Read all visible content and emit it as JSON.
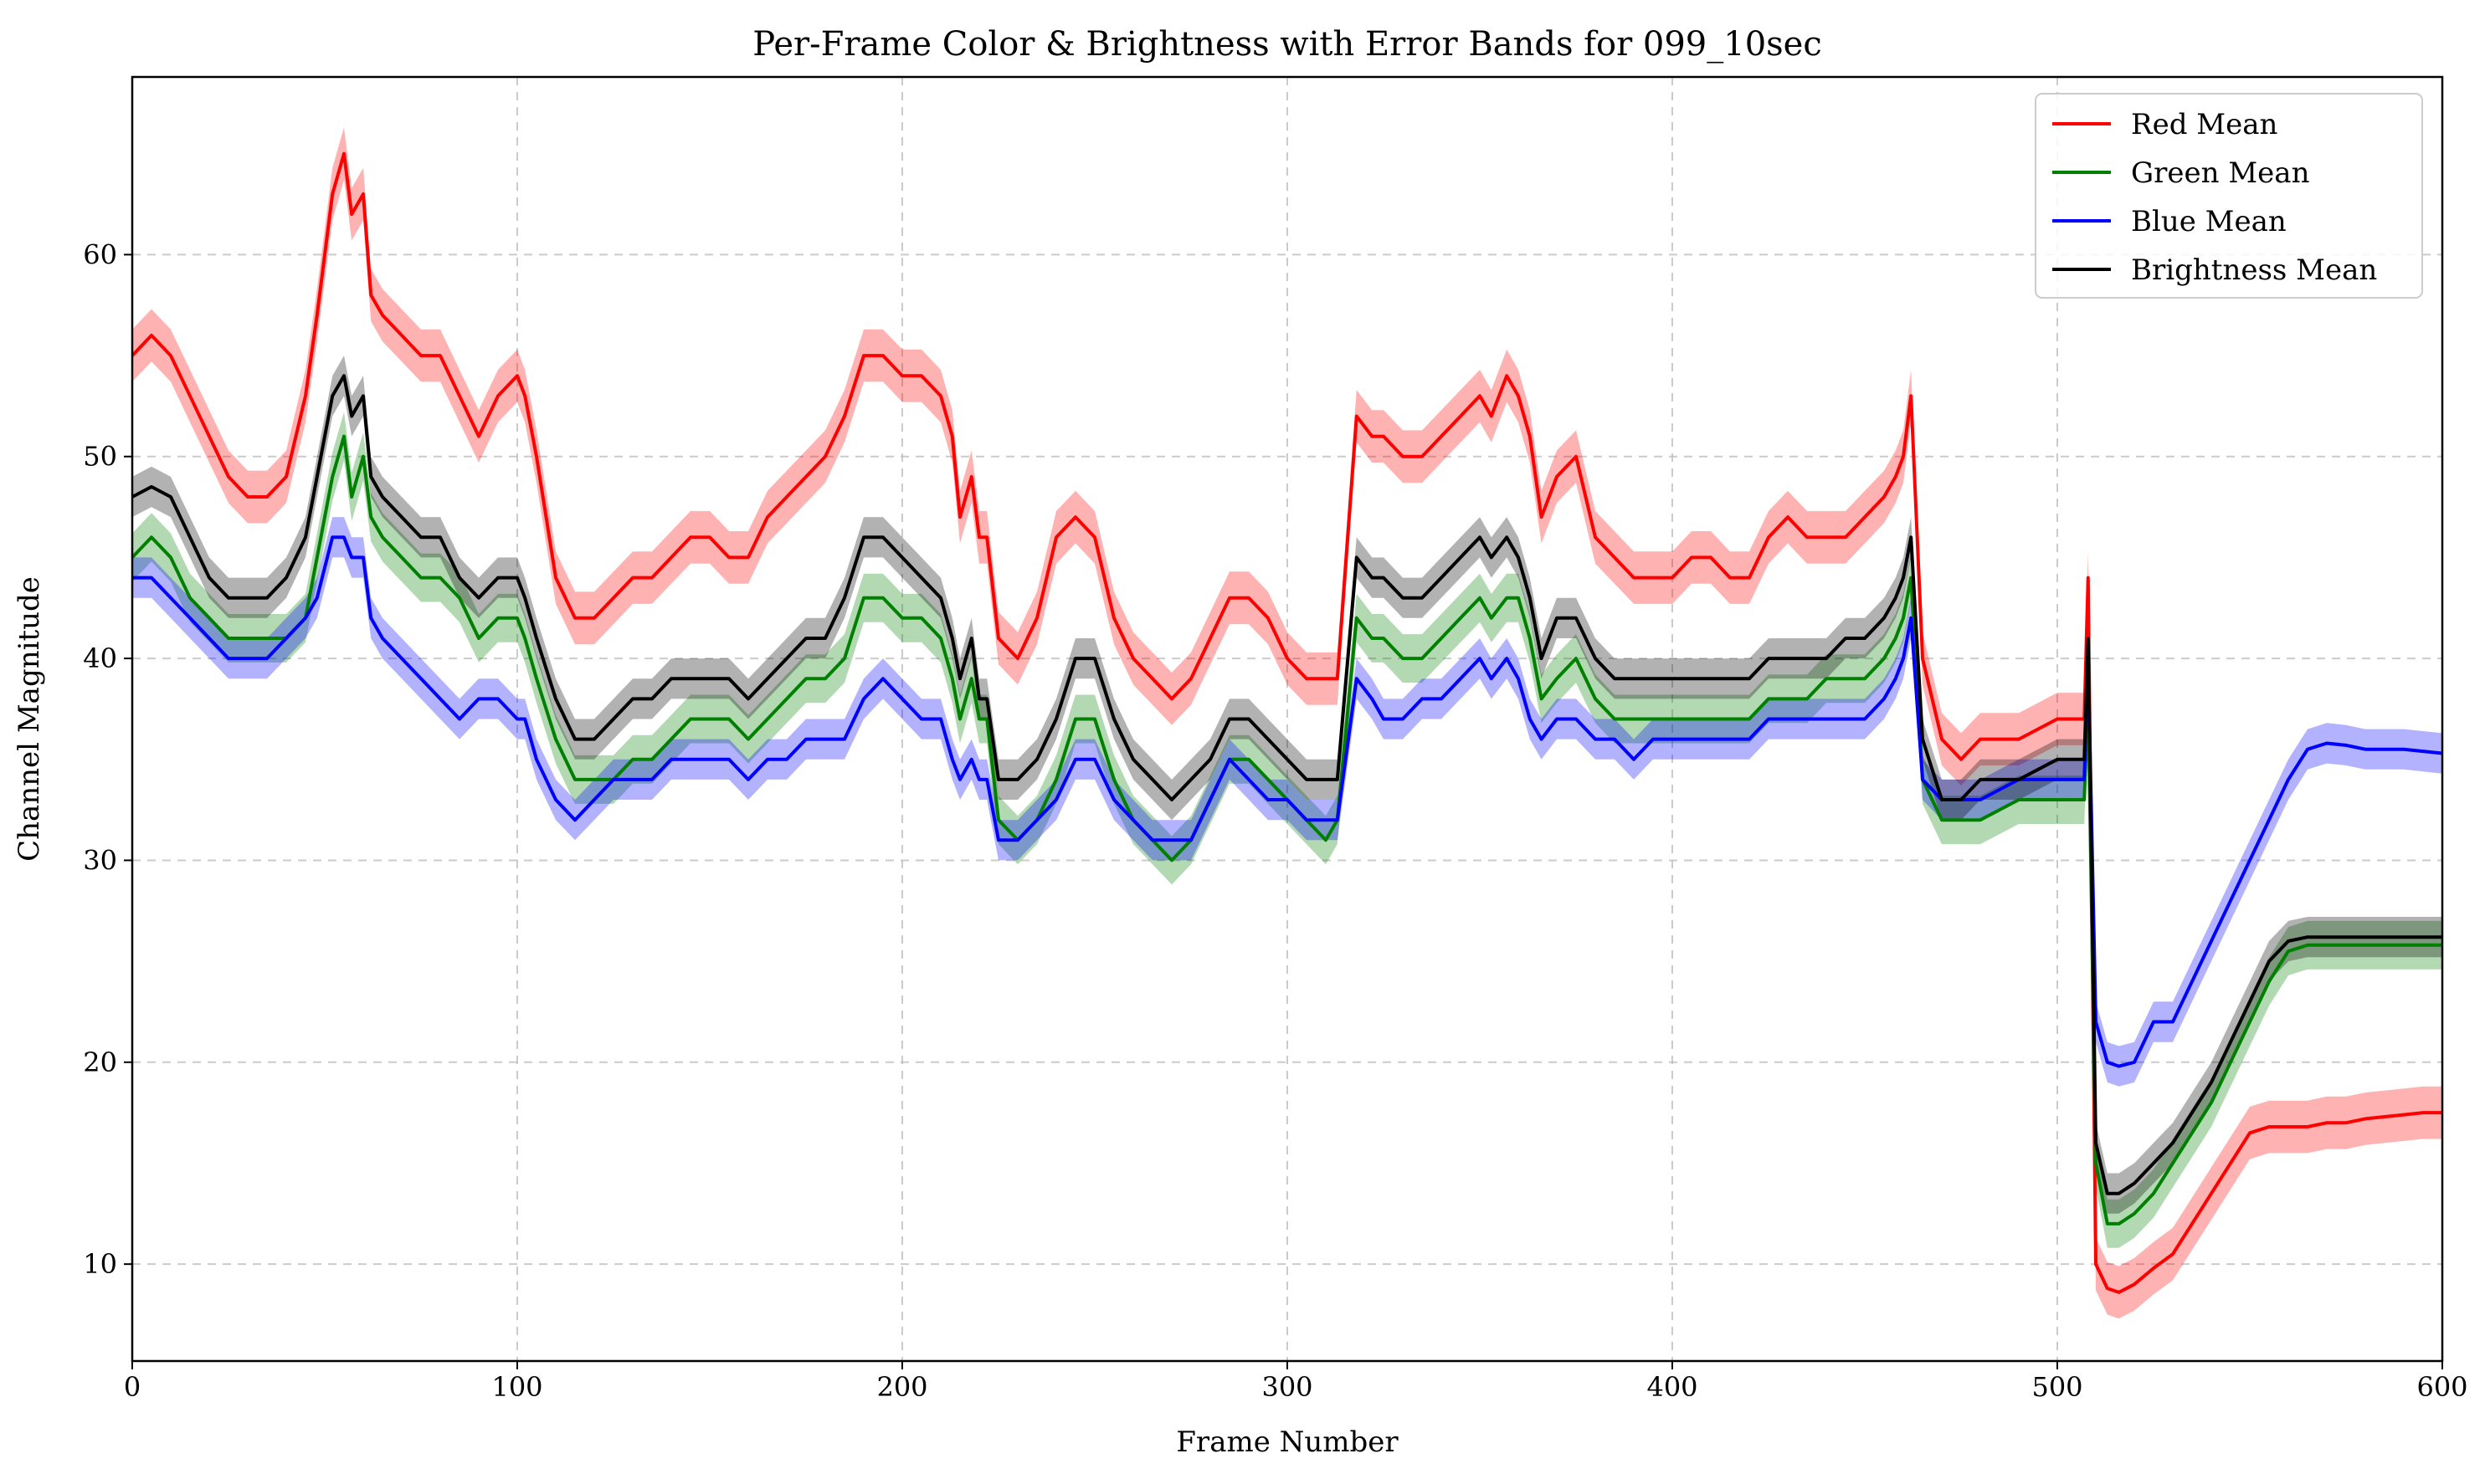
{
  "chart_data": {
    "type": "line",
    "title": "Per-Frame Color & Brightness with Error Bands for 099_10sec",
    "xlabel": "Frame Number",
    "ylabel": "Channel Magnitude",
    "xlim": [
      0,
      600
    ],
    "ylim": [
      5.2,
      68.8
    ],
    "xticks": [
      0,
      100,
      200,
      300,
      400,
      500,
      600
    ],
    "yticks": [
      10,
      20,
      30,
      40,
      50,
      60
    ],
    "grid": true,
    "legend_position": "top-right",
    "band_halfwidth": [
      1.3,
      1.2,
      1.0,
      1.0
    ],
    "series": [
      {
        "name": "Red Mean",
        "color": "#ff0000",
        "x": [
          0,
          5,
          10,
          15,
          20,
          25,
          30,
          35,
          40,
          45,
          48,
          52,
          55,
          57,
          60,
          62,
          65,
          70,
          75,
          80,
          85,
          90,
          95,
          100,
          102,
          105,
          110,
          115,
          120,
          125,
          130,
          135,
          140,
          145,
          150,
          155,
          160,
          165,
          170,
          175,
          180,
          185,
          190,
          195,
          200,
          205,
          210,
          213,
          215,
          218,
          220,
          222,
          225,
          230,
          235,
          240,
          245,
          250,
          255,
          260,
          265,
          270,
          275,
          280,
          285,
          290,
          295,
          300,
          305,
          310,
          313,
          318,
          322,
          325,
          330,
          335,
          340,
          345,
          350,
          353,
          357,
          360,
          363,
          366,
          370,
          375,
          380,
          385,
          390,
          395,
          400,
          405,
          410,
          415,
          420,
          425,
          430,
          435,
          440,
          445,
          450,
          455,
          458,
          460,
          462,
          465,
          470,
          475,
          480,
          490,
          500,
          505,
          507,
          508,
          510,
          513,
          516,
          520,
          525,
          530,
          535,
          540,
          545,
          550,
          555,
          560,
          565,
          570,
          575,
          580,
          585,
          590,
          595,
          600
        ],
        "y": [
          55,
          56,
          55,
          53,
          51,
          49,
          48,
          48,
          49,
          53,
          57,
          63,
          65,
          62,
          63,
          58,
          57,
          56,
          55,
          55,
          53,
          51,
          53,
          54,
          53,
          50,
          44,
          42,
          42,
          43,
          44,
          44,
          45,
          46,
          46,
          45,
          45,
          47,
          48,
          49,
          50,
          52,
          55,
          55,
          54,
          54,
          53,
          51,
          47,
          49,
          46,
          46,
          41,
          40,
          42,
          46,
          47,
          46,
          42,
          40,
          39,
          38,
          39,
          41,
          43,
          43,
          42,
          40,
          39,
          39,
          39,
          52,
          51,
          51,
          50,
          50,
          51,
          52,
          53,
          52,
          54,
          53,
          51,
          47,
          49,
          50,
          46,
          45,
          44,
          44,
          44,
          45,
          45,
          44,
          44,
          46,
          47,
          46,
          46,
          46,
          47,
          48,
          49,
          50,
          53,
          40,
          36,
          35,
          36,
          36,
          37,
          37,
          37,
          44,
          10,
          8.8,
          8.6,
          9,
          9.8,
          10.5,
          12,
          13.5,
          15,
          16.5,
          16.8,
          16.8,
          16.8,
          17,
          17,
          17.2,
          17.3,
          17.4,
          17.5,
          17.5
        ]
      },
      {
        "name": "Green Mean",
        "color": "#008000",
        "x": [
          0,
          5,
          10,
          15,
          20,
          25,
          30,
          35,
          40,
          45,
          48,
          52,
          55,
          57,
          60,
          62,
          65,
          70,
          75,
          80,
          85,
          90,
          95,
          100,
          102,
          105,
          110,
          115,
          120,
          125,
          130,
          135,
          140,
          145,
          150,
          155,
          160,
          165,
          170,
          175,
          180,
          185,
          190,
          195,
          200,
          205,
          210,
          213,
          215,
          218,
          220,
          222,
          225,
          230,
          235,
          240,
          245,
          250,
          255,
          260,
          265,
          270,
          275,
          280,
          285,
          290,
          295,
          300,
          305,
          310,
          313,
          318,
          322,
          325,
          330,
          335,
          340,
          345,
          350,
          353,
          357,
          360,
          363,
          366,
          370,
          375,
          380,
          385,
          390,
          395,
          400,
          405,
          410,
          415,
          420,
          425,
          430,
          435,
          440,
          445,
          450,
          455,
          458,
          460,
          462,
          465,
          470,
          475,
          480,
          490,
          500,
          505,
          507,
          508,
          510,
          513,
          516,
          520,
          525,
          530,
          535,
          540,
          545,
          550,
          555,
          560,
          565,
          570,
          575,
          580,
          585,
          590,
          595,
          600
        ],
        "y": [
          45,
          46,
          45,
          43,
          42,
          41,
          41,
          41,
          41,
          42,
          45,
          49,
          51,
          48,
          50,
          47,
          46,
          45,
          44,
          44,
          43,
          41,
          42,
          42,
          41,
          39,
          36,
          34,
          34,
          34,
          35,
          35,
          36,
          37,
          37,
          37,
          36,
          37,
          38,
          39,
          39,
          40,
          43,
          43,
          42,
          42,
          41,
          39,
          37,
          39,
          37,
          37,
          32,
          31,
          32,
          34,
          37,
          37,
          34,
          32,
          31,
          30,
          31,
          33,
          35,
          35,
          34,
          33,
          32,
          31,
          32,
          42,
          41,
          41,
          40,
          40,
          41,
          42,
          43,
          42,
          43,
          43,
          41,
          38,
          39,
          40,
          38,
          37,
          37,
          37,
          37,
          37,
          37,
          37,
          37,
          38,
          38,
          38,
          39,
          39,
          39,
          40,
          41,
          42,
          44,
          34,
          32,
          32,
          32,
          33,
          33,
          33,
          33,
          38,
          15,
          12,
          12,
          12.5,
          13.5,
          15,
          16.5,
          18,
          20,
          22,
          24,
          25.5,
          25.8,
          25.8,
          25.8,
          25.8,
          25.8,
          25.8,
          25.8,
          25.8
        ]
      },
      {
        "name": "Blue Mean",
        "color": "#0000ff",
        "x": [
          0,
          5,
          10,
          15,
          20,
          25,
          30,
          35,
          40,
          45,
          48,
          52,
          55,
          57,
          60,
          62,
          65,
          70,
          75,
          80,
          85,
          90,
          95,
          100,
          102,
          105,
          110,
          115,
          120,
          125,
          130,
          135,
          140,
          145,
          150,
          155,
          160,
          165,
          170,
          175,
          180,
          185,
          190,
          195,
          200,
          205,
          210,
          213,
          215,
          218,
          220,
          222,
          225,
          230,
          235,
          240,
          245,
          250,
          255,
          260,
          265,
          270,
          275,
          280,
          285,
          290,
          295,
          300,
          305,
          310,
          313,
          318,
          322,
          325,
          330,
          335,
          340,
          345,
          350,
          353,
          357,
          360,
          363,
          366,
          370,
          375,
          380,
          385,
          390,
          395,
          400,
          405,
          410,
          415,
          420,
          425,
          430,
          435,
          440,
          445,
          450,
          455,
          458,
          460,
          462,
          465,
          470,
          475,
          480,
          490,
          500,
          505,
          507,
          508,
          510,
          513,
          516,
          520,
          525,
          530,
          535,
          540,
          545,
          550,
          555,
          560,
          565,
          570,
          575,
          580,
          585,
          590,
          595,
          600
        ],
        "y": [
          44,
          44,
          43,
          42,
          41,
          40,
          40,
          40,
          41,
          42,
          43,
          46,
          46,
          45,
          45,
          42,
          41,
          40,
          39,
          38,
          37,
          38,
          38,
          37,
          37,
          35,
          33,
          32,
          33,
          34,
          34,
          34,
          35,
          35,
          35,
          35,
          34,
          35,
          35,
          36,
          36,
          36,
          38,
          39,
          38,
          37,
          37,
          35,
          34,
          35,
          34,
          34,
          31,
          31,
          32,
          33,
          35,
          35,
          33,
          32,
          31,
          31,
          31,
          33,
          35,
          34,
          33,
          33,
          32,
          32,
          32,
          39,
          38,
          37,
          37,
          38,
          38,
          39,
          40,
          39,
          40,
          39,
          37,
          36,
          37,
          37,
          36,
          36,
          35,
          36,
          36,
          36,
          36,
          36,
          36,
          37,
          37,
          37,
          37,
          37,
          37,
          38,
          39,
          40,
          42,
          34,
          33,
          33,
          33,
          34,
          34,
          34,
          34,
          40,
          22,
          20,
          19.8,
          20,
          22,
          22,
          24,
          26,
          28,
          30,
          32,
          34,
          35.5,
          35.8,
          35.7,
          35.5,
          35.5,
          35.5,
          35.4,
          35.3
        ]
      },
      {
        "name": "Brightness Mean",
        "color": "#000000",
        "x": [
          0,
          5,
          10,
          15,
          20,
          25,
          30,
          35,
          40,
          45,
          48,
          52,
          55,
          57,
          60,
          62,
          65,
          70,
          75,
          80,
          85,
          90,
          95,
          100,
          102,
          105,
          110,
          115,
          120,
          125,
          130,
          135,
          140,
          145,
          150,
          155,
          160,
          165,
          170,
          175,
          180,
          185,
          190,
          195,
          200,
          205,
          210,
          213,
          215,
          218,
          220,
          222,
          225,
          230,
          235,
          240,
          245,
          250,
          255,
          260,
          265,
          270,
          275,
          280,
          285,
          290,
          295,
          300,
          305,
          310,
          313,
          318,
          322,
          325,
          330,
          335,
          340,
          345,
          350,
          353,
          357,
          360,
          363,
          366,
          370,
          375,
          380,
          385,
          390,
          395,
          400,
          405,
          410,
          415,
          420,
          425,
          430,
          435,
          440,
          445,
          450,
          455,
          458,
          460,
          462,
          465,
          470,
          475,
          480,
          490,
          500,
          505,
          507,
          508,
          510,
          513,
          516,
          520,
          525,
          530,
          535,
          540,
          545,
          550,
          555,
          560,
          565,
          570,
          575,
          580,
          585,
          590,
          595,
          600
        ],
        "y": [
          48,
          48.5,
          48,
          46,
          44,
          43,
          43,
          43,
          44,
          46,
          49,
          53,
          54,
          52,
          53,
          49,
          48,
          47,
          46,
          46,
          44,
          43,
          44,
          44,
          43,
          41,
          38,
          36,
          36,
          37,
          38,
          38,
          39,
          39,
          39,
          39,
          38,
          39,
          40,
          41,
          41,
          43,
          46,
          46,
          45,
          44,
          43,
          41,
          39,
          41,
          38,
          38,
          34,
          34,
          35,
          37,
          40,
          40,
          37,
          35,
          34,
          33,
          34,
          35,
          37,
          37,
          36,
          35,
          34,
          34,
          34,
          45,
          44,
          44,
          43,
          43,
          44,
          45,
          46,
          45,
          46,
          45,
          43,
          40,
          42,
          42,
          40,
          39,
          39,
          39,
          39,
          39,
          39,
          39,
          39,
          40,
          40,
          40,
          40,
          41,
          41,
          42,
          43,
          44,
          46,
          36,
          33,
          33,
          34,
          34,
          35,
          35,
          35,
          41,
          16,
          13.5,
          13.5,
          14,
          15,
          16,
          17.5,
          19,
          21,
          23,
          25,
          26,
          26.2,
          26.2,
          26.2,
          26.2,
          26.2,
          26.2,
          26.2,
          26.2
        ]
      }
    ]
  }
}
